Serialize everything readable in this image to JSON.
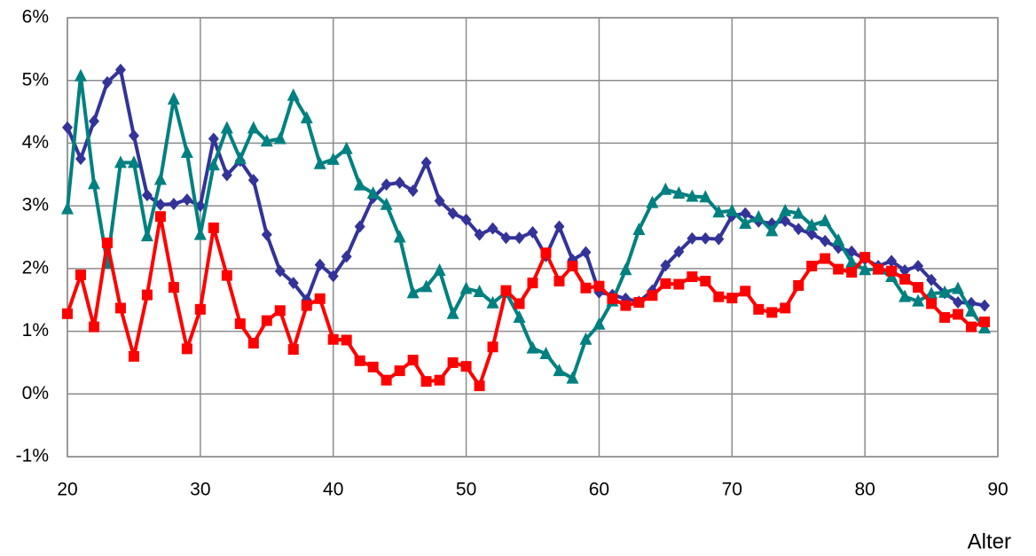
{
  "chart_data": {
    "type": "line",
    "x_label": "Alter",
    "x": [
      20,
      21,
      22,
      23,
      24,
      25,
      26,
      27,
      28,
      29,
      30,
      31,
      32,
      33,
      34,
      35,
      36,
      37,
      38,
      39,
      40,
      41,
      42,
      43,
      44,
      45,
      46,
      47,
      48,
      49,
      50,
      51,
      52,
      53,
      54,
      55,
      56,
      57,
      58,
      59,
      60,
      61,
      62,
      63,
      64,
      65,
      66,
      67,
      68,
      69,
      70,
      71,
      72,
      73,
      74,
      75,
      76,
      77,
      78,
      79,
      80,
      81,
      82,
      83,
      84,
      85,
      86,
      87,
      88,
      89
    ],
    "series": [
      {
        "color": "#333399",
        "marker": "diamond",
        "values": [
          4.25,
          3.75,
          4.35,
          4.97,
          5.17,
          4.12,
          3.17,
          3.02,
          3.03,
          3.1,
          3.0,
          4.07,
          3.49,
          3.72,
          3.41,
          2.54,
          1.96,
          1.77,
          1.5,
          2.06,
          1.88,
          2.19,
          2.67,
          3.13,
          3.34,
          3.37,
          3.24,
          3.69,
          3.08,
          2.88,
          2.78,
          2.54,
          2.64,
          2.49,
          2.49,
          2.58,
          2.2,
          2.67,
          2.14,
          2.26,
          1.62,
          1.58,
          1.52,
          1.47,
          1.65,
          2.05,
          2.27,
          2.48,
          2.48,
          2.47,
          2.84,
          2.88,
          2.75,
          2.72,
          2.76,
          2.63,
          2.55,
          2.44,
          2.33,
          2.27,
          2.15,
          2.04,
          2.12,
          1.97,
          2.04,
          1.82,
          1.61,
          1.46,
          1.45,
          1.41
        ]
      },
      {
        "color": "#008080",
        "marker": "triangle",
        "values": [
          2.95,
          5.07,
          3.35,
          2.08,
          3.69,
          3.69,
          2.52,
          3.42,
          4.7,
          3.85,
          2.54,
          3.65,
          4.24,
          3.75,
          4.24,
          4.03,
          4.07,
          4.76,
          4.4,
          3.67,
          3.74,
          3.91,
          3.33,
          3.2,
          3.02,
          2.5,
          1.61,
          1.71,
          1.97,
          1.28,
          1.68,
          1.63,
          1.45,
          1.62,
          1.22,
          0.73,
          0.64,
          0.37,
          0.25,
          0.87,
          1.11,
          1.48,
          1.98,
          2.62,
          3.05,
          3.26,
          3.2,
          3.15,
          3.14,
          2.9,
          2.92,
          2.72,
          2.82,
          2.6,
          2.92,
          2.88,
          2.69,
          2.76,
          2.45,
          2.1,
          1.98,
          1.99,
          1.87,
          1.55,
          1.48,
          1.6,
          1.62,
          1.68,
          1.32,
          1.05
        ]
      },
      {
        "color": "#ff0000",
        "marker": "square",
        "values": [
          1.28,
          1.9,
          1.07,
          2.41,
          1.37,
          0.6,
          1.58,
          2.83,
          1.7,
          0.72,
          1.35,
          2.65,
          1.89,
          1.12,
          0.81,
          1.17,
          1.33,
          0.71,
          1.41,
          1.52,
          0.87,
          0.86,
          0.53,
          0.43,
          0.22,
          0.37,
          0.54,
          0.2,
          0.22,
          0.5,
          0.44,
          0.13,
          0.75,
          1.65,
          1.44,
          1.77,
          2.25,
          1.8,
          2.04,
          1.69,
          1.72,
          1.52,
          1.41,
          1.46,
          1.57,
          1.76,
          1.75,
          1.87,
          1.8,
          1.55,
          1.53,
          1.64,
          1.35,
          1.3,
          1.37,
          1.73,
          2.04,
          2.16,
          1.99,
          1.94,
          2.18,
          1.99,
          1.96,
          1.83,
          1.7,
          1.44,
          1.22,
          1.27,
          1.07,
          1.15
        ]
      }
    ],
    "xlim": [
      20,
      90
    ],
    "xticks": [
      20,
      30,
      40,
      50,
      60,
      70,
      80,
      90
    ],
    "ylim": [
      -1,
      6
    ],
    "yticks": [
      {
        "value": -1,
        "label": "-1%"
      },
      {
        "value": 0,
        "label": "0%"
      },
      {
        "value": 1,
        "label": "1%"
      },
      {
        "value": 2,
        "label": "2%"
      },
      {
        "value": 3,
        "label": "3%"
      },
      {
        "value": 4,
        "label": "4%"
      },
      {
        "value": 5,
        "label": "5%"
      },
      {
        "value": 6,
        "label": "6%"
      }
    ],
    "grid": true
  }
}
